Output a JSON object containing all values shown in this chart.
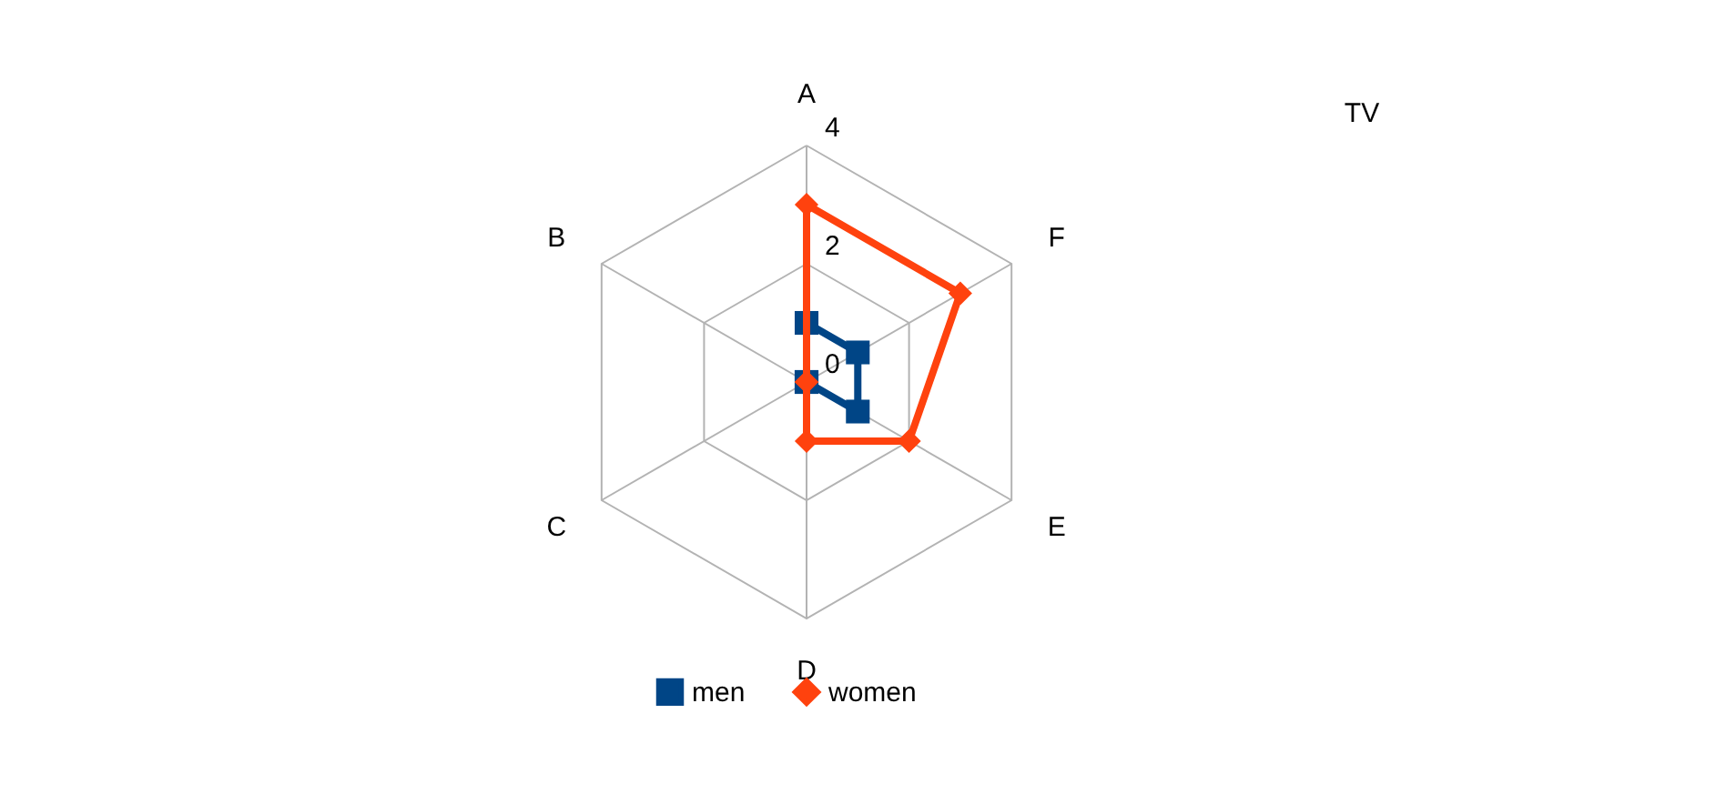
{
  "chart_data": {
    "type": "radar",
    "title": "TV",
    "categories": [
      "A",
      "F",
      "E",
      "D",
      "C",
      "B"
    ],
    "ylim": [
      0,
      4
    ],
    "yticks": [
      0,
      2,
      4
    ],
    "grid": true,
    "legend": "bottom",
    "series": [
      {
        "name": "men",
        "color": "#004586",
        "marker": "square",
        "values": [
          1,
          1,
          1,
          0,
          0,
          0
        ]
      },
      {
        "name": "women",
        "color": "#ff420e",
        "marker": "diamond",
        "values": [
          3,
          3,
          2,
          1,
          0,
          0
        ]
      }
    ]
  }
}
